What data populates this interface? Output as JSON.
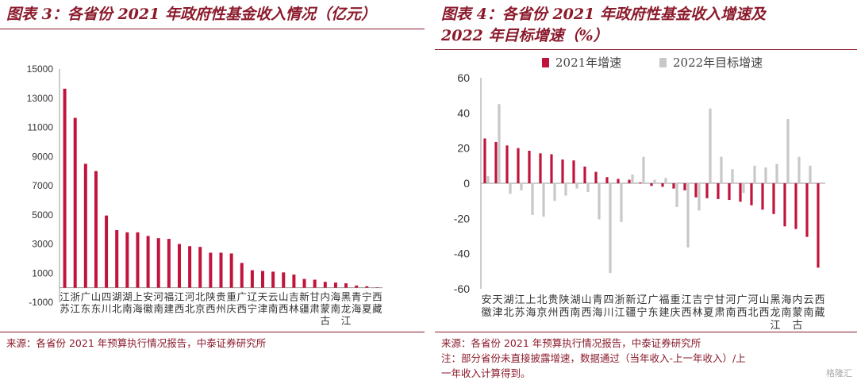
{
  "panel1": {
    "title": "图表 3：各省份 2021 年政府性基金收入情况（亿元）",
    "source": "来源：各省份 2021 年预算执行情况报告，中泰证券研究所"
  },
  "panel2": {
    "title_line1": "图表 4：各省份 2021 年政府性基金收入增速及",
    "title_line2": "2022 年目标增速（%）",
    "source": "来源：各省份 2021 年预算执行情况报告，中泰证券研究所",
    "note_line1": "注：部分省份未直接披露增速，数据通过（当年收入-上一年收入）/上",
    "note_line2": "一年收入计算得到。"
  },
  "watermark": "格隆汇",
  "colors": {
    "red": "#c0143c",
    "gray": "#c8c8c8",
    "brand": "#8b1a2b"
  },
  "chart_data": [
    {
      "type": "bar",
      "title": "各省份 2021 年政府性基金收入情况（亿元）",
      "categories": [
        "江苏",
        "浙江",
        "广东",
        "山东",
        "四川",
        "湖北",
        "湖南",
        "上海",
        "安徽",
        "河南",
        "福建",
        "江西",
        "河北",
        "北京",
        "陕西",
        "贵州",
        "重庆",
        "广西",
        "辽宁",
        "天津",
        "云南",
        "山西",
        "吉林",
        "新疆",
        "甘肃",
        "内蒙古",
        "海南",
        "黑龙江",
        "青海",
        "宁夏",
        "西藏"
      ],
      "values": [
        13650,
        11650,
        8500,
        8000,
        4950,
        3950,
        3800,
        3800,
        3550,
        3400,
        3350,
        3000,
        2850,
        2800,
        2400,
        2400,
        2350,
        1700,
        1200,
        1150,
        1100,
        1050,
        900,
        600,
        550,
        400,
        350,
        300,
        150,
        100,
        20
      ],
      "ylim": [
        -1000,
        15000
      ],
      "yticks": [
        -1000,
        1000,
        3000,
        5000,
        7000,
        9000,
        11000,
        13000,
        15000
      ],
      "color": "#c0143c"
    },
    {
      "type": "bar",
      "title": "各省份 2021 年政府性基金收入增速及 2022 年目标增速（%）",
      "categories": [
        "安徽",
        "天津",
        "湖北",
        "江苏",
        "上海",
        "北京",
        "贵州",
        "陕西",
        "湖南",
        "山西",
        "青海",
        "四川",
        "浙江",
        "新疆",
        "辽宁",
        "广东",
        "福建",
        "重庆",
        "江西",
        "吉林",
        "宁夏",
        "甘肃",
        "河南",
        "广西",
        "河北",
        "山西",
        "黑龙江",
        "海南",
        "内蒙古",
        "云南",
        "西藏"
      ],
      "series": [
        {
          "name": "2021年增速",
          "color": "#c0143c",
          "values": [
            25.5,
            23.5,
            21.5,
            20,
            18.5,
            17,
            16.5,
            13.5,
            13,
            9.5,
            6.5,
            3.5,
            2.5,
            2,
            0.5,
            -1.5,
            -2,
            -3,
            -4,
            -8,
            -8.5,
            -9,
            -9.5,
            -10.5,
            -12.5,
            -15,
            -17.5,
            -24.5,
            -26,
            -30.5,
            -48
          ]
        },
        {
          "name": "2022年目标增速",
          "color": "#c8c8c8",
          "values": [
            4,
            45,
            -6,
            -4,
            -18,
            -19,
            -10,
            -7,
            -3,
            -5,
            -20.5,
            -51,
            -22,
            5,
            15,
            2,
            3,
            -13.5,
            -36.5,
            -15.5,
            42.5,
            15,
            8,
            -5.5,
            10,
            9,
            11,
            36.5,
            15,
            10,
            null
          ]
        }
      ],
      "ylim": [
        -60,
        60
      ],
      "yticks": [
        -60,
        -40,
        -20,
        0,
        20,
        40,
        60
      ],
      "legend_position": "top"
    }
  ]
}
